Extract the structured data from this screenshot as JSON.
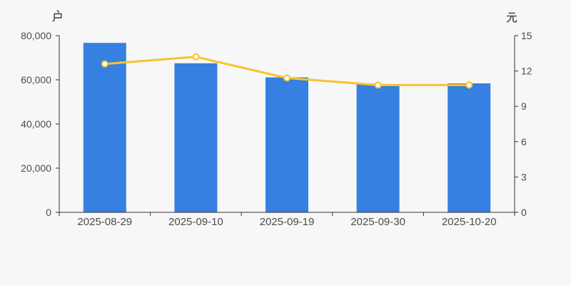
{
  "chart_data": {
    "type": "bar",
    "combo": "bar+line dual-axis",
    "title": "",
    "legend": "none",
    "grid_lines": false,
    "categories": [
      "2025-08-29",
      "2025-09-10",
      "2025-09-19",
      "2025-09-30",
      "2025-10-20"
    ],
    "series": [
      {
        "name": "户",
        "type": "bar",
        "y_axis": "left",
        "values": [
          76700,
          67500,
          61100,
          57900,
          58400
        ]
      },
      {
        "name": "元",
        "type": "line",
        "y_axis": "right",
        "values": [
          12.6,
          13.2,
          11.4,
          10.8,
          10.8
        ]
      }
    ],
    "left_axis": {
      "name": "户",
      "min": 0,
      "max": 80000,
      "tick_labels": [
        "0",
        "20,000",
        "40,000",
        "60,000",
        "80,000"
      ]
    },
    "right_axis": {
      "name": "元",
      "min": 0,
      "max": 15,
      "tick_labels": [
        "0",
        "3",
        "6",
        "9",
        "12",
        "15"
      ]
    },
    "x_axis": {
      "tick_labels": [
        "2025-08-29",
        "2025-09-10",
        "2025-09-19",
        "2025-09-30",
        "2025-10-20"
      ]
    }
  },
  "colors": {
    "background": "#f7f7f7",
    "bar": "#3580e0",
    "line": "#f8c32c",
    "marker_fill": "#ffffff",
    "axis_line": "#333333",
    "tick_label": "#4c4c4c"
  }
}
